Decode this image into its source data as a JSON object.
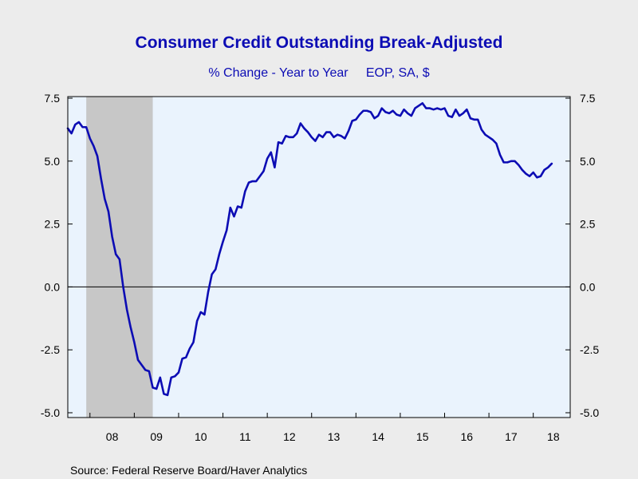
{
  "chart_data": {
    "type": "line",
    "title": "Consumer Credit Outstanding Break-Adjusted",
    "subtitle": "% Change - Year to Year     EOP, SA, $",
    "source": "Source:  Federal Reserve Board/Haver Analytics",
    "x_tick_labels": [
      "08",
      "09",
      "10",
      "11",
      "12",
      "13",
      "14",
      "15",
      "16",
      "17",
      "18"
    ],
    "x_range": [
      "2007-07",
      "2018-11"
    ],
    "y_ticks": [
      7.5,
      5.0,
      2.5,
      0.0,
      -2.5,
      -5.0
    ],
    "y_tick_labels": [
      "7.5",
      "5.0",
      "2.5",
      "0.0",
      "-2.5",
      "-5.0"
    ],
    "ylim": [
      -5.0,
      7.5
    ],
    "grid": false,
    "legend": "none",
    "zero_line": true,
    "recession": {
      "start": "2007-12",
      "end": "2009-06"
    },
    "colors": {
      "line": "#0c0cb4",
      "plot_bg": "#eaf3fd",
      "recession": "#c7c7c7",
      "text_blue": "#0c0cb4",
      "page_bg": "#ececec"
    },
    "series": [
      {
        "start": "2007-07",
        "frequency": "monthly",
        "values": [
          6.3,
          6.1,
          6.45,
          6.55,
          6.35,
          6.35,
          5.9,
          5.6,
          5.2,
          4.3,
          3.5,
          3.0,
          2.0,
          1.3,
          1.1,
          0.0,
          -0.9,
          -1.6,
          -2.2,
          -2.9,
          -3.1,
          -3.3,
          -3.35,
          -4.0,
          -4.05,
          -3.6,
          -4.25,
          -4.3,
          -3.6,
          -3.55,
          -3.4,
          -2.85,
          -2.8,
          -2.45,
          -2.2,
          -1.35,
          -1.0,
          -1.1,
          -0.2,
          0.5,
          0.7,
          1.3,
          1.8,
          2.25,
          3.15,
          2.8,
          3.2,
          3.15,
          3.8,
          4.15,
          4.2,
          4.2,
          4.4,
          4.6,
          5.1,
          5.35,
          4.75,
          5.75,
          5.7,
          6.0,
          5.95,
          5.95,
          6.1,
          6.5,
          6.3,
          6.15,
          5.95,
          5.8,
          6.05,
          5.95,
          6.15,
          6.15,
          5.95,
          6.05,
          6.0,
          5.9,
          6.2,
          6.6,
          6.65,
          6.85,
          7.0,
          7.0,
          6.95,
          6.7,
          6.8,
          7.1,
          6.95,
          6.9,
          7.0,
          6.85,
          6.8,
          7.05,
          6.9,
          6.8,
          7.1,
          7.2,
          7.3,
          7.1,
          7.1,
          7.05,
          7.1,
          7.05,
          7.1,
          6.8,
          6.75,
          7.05,
          6.8,
          6.9,
          7.05,
          6.7,
          6.65,
          6.65,
          6.25,
          6.05,
          5.95,
          5.85,
          5.7,
          5.25,
          4.95,
          4.95,
          5.0,
          5.0,
          4.85,
          4.65,
          4.5,
          4.4,
          4.55,
          4.35,
          4.4,
          4.65,
          4.75,
          4.9
        ]
      }
    ]
  }
}
